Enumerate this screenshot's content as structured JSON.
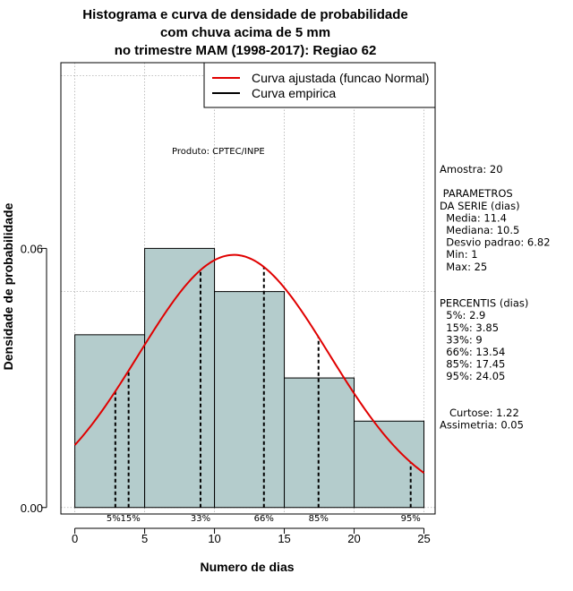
{
  "colors": {
    "bar_fill": "#b4cccc",
    "bar_stroke": "#000000",
    "curve": "#e00000",
    "grid": "#b0b0b0"
  },
  "chart_data": {
    "type": "bar",
    "title_lines": [
      "Histograma e curva de densidade de probabilidade",
      "com chuva acima de 5 mm",
      "no trimestre MAM (1998-2017): Regiao 62"
    ],
    "xlabel": "Numero de dias",
    "ylabel": "Densidade de probabilidade",
    "xlim": [
      -1,
      25.8
    ],
    "ylim": [
      -0.0015,
      0.103
    ],
    "x_ticks": [
      0,
      5,
      10,
      15,
      20,
      25
    ],
    "y_ticks": [
      0.0,
      0.06
    ],
    "y_tick_labels": [
      "0.00",
      "0.06"
    ],
    "grid_x": [
      0,
      5,
      10,
      15,
      20,
      25
    ],
    "grid_y": [
      0.0,
      0.05,
      0.1
    ],
    "bins": [
      {
        "start": 0,
        "end": 5,
        "density": 0.04
      },
      {
        "start": 5,
        "end": 10,
        "density": 0.06
      },
      {
        "start": 10,
        "end": 15,
        "density": 0.05
      },
      {
        "start": 15,
        "end": 20,
        "density": 0.03
      },
      {
        "start": 20,
        "end": 25,
        "density": 0.02
      }
    ],
    "normal_curve": {
      "mean": 11.4,
      "sd": 6.82,
      "x_from": 0,
      "x_to": 25
    },
    "percentile_lines": [
      {
        "label": "5%",
        "value": 2.9
      },
      {
        "label": "15%",
        "value": 3.85
      },
      {
        "label": "33%",
        "value": 9
      },
      {
        "label": "66%",
        "value": 13.54
      },
      {
        "label": "85%",
        "value": 17.45
      },
      {
        "label": "95%",
        "value": 24.05
      }
    ],
    "legend": {
      "position": "top-right",
      "entries": [
        {
          "label": "Curva ajustada (funcao Normal)",
          "color": "#e00000"
        },
        {
          "label": "Curva empirica",
          "color": "#000000"
        }
      ]
    },
    "product_note": "Produto: CPTEC/INPE"
  },
  "stats_panel": {
    "lines": [
      "Amostra: 20",
      "",
      " PARAMETROS",
      "DA SERIE (dias)",
      "  Media: 11.4",
      "  Mediana: 10.5",
      "  Desvio padrao: 6.82",
      "  Min: 1",
      "  Max: 25",
      "",
      "",
      "PERCENTIS (dias)",
      "  5%: 2.9",
      "  15%: 3.85",
      "  33%: 9",
      "  66%: 13.54",
      "  85%: 17.45",
      "  95%: 24.05",
      "",
      "",
      "   Curtose: 1.22",
      "Assimetria: 0.05"
    ]
  }
}
